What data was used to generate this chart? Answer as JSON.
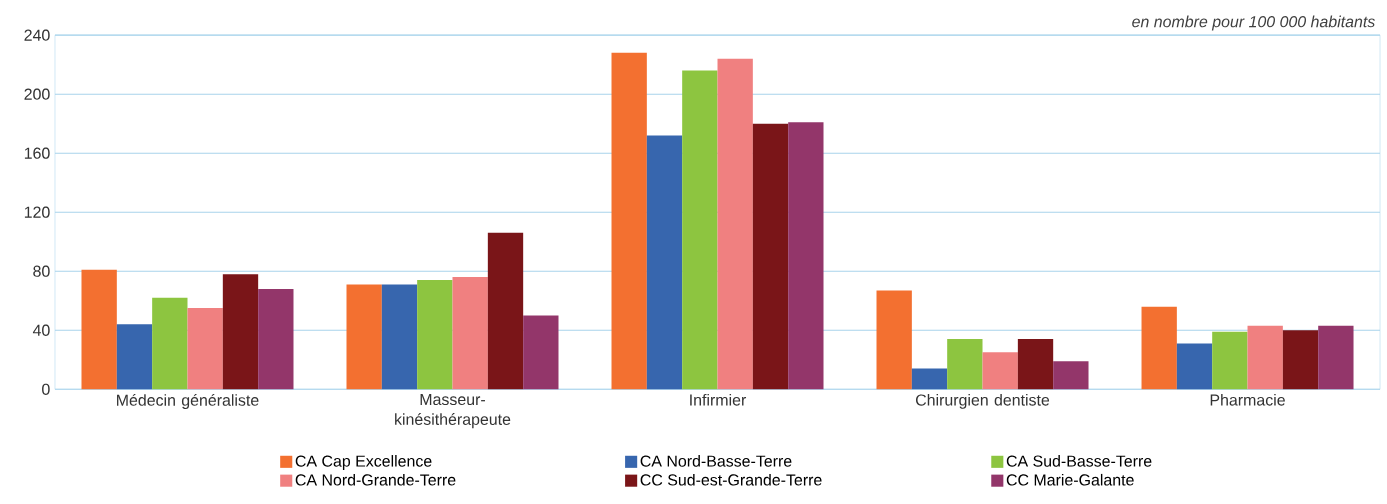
{
  "chart_data": {
    "type": "bar",
    "annotations": [
      "en nombre pour 100 000 habitants"
    ],
    "categories": [
      "Médecin généraliste",
      "Masseur-kinésithérapeute",
      "Infirmier",
      "Chirurgien dentiste",
      "Pharmacie"
    ],
    "series": [
      {
        "name": "CA Cap Excellence",
        "color": "#f37030",
        "values": [
          81,
          71,
          228,
          67,
          56
        ]
      },
      {
        "name": "CA Nord-Basse-Terre",
        "color": "#3766ae",
        "values": [
          44,
          71,
          172,
          14,
          31
        ]
      },
      {
        "name": "CA Sud-Basse-Terre",
        "color": "#8dc540",
        "values": [
          62,
          74,
          216,
          34,
          39
        ]
      },
      {
        "name": "CA Nord-Grande-Terre",
        "color": "#f08080",
        "values": [
          55,
          76,
          224,
          25,
          43
        ]
      },
      {
        "name": "CC Sud-est-Grande-Terre",
        "color": "#7a1518",
        "values": [
          78,
          106,
          180,
          34,
          40
        ]
      },
      {
        "name": "CC Marie-Galante",
        "color": "#93366a",
        "values": [
          68,
          50,
          181,
          19,
          43
        ]
      }
    ],
    "ylim": [
      0,
      240
    ],
    "yticks": [
      0,
      40,
      80,
      120,
      160,
      200,
      240
    ],
    "grid": "y",
    "legend": "bottom"
  }
}
